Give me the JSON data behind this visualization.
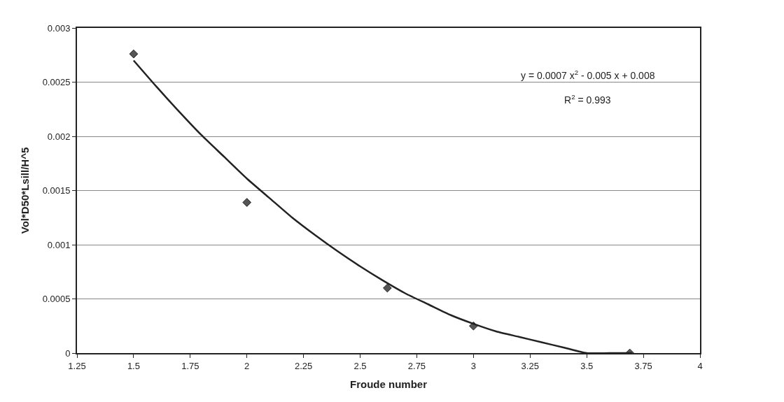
{
  "chart_data": {
    "type": "scatter",
    "xlabel": "Froude number",
    "ylabel": "Vol*D50*Lsill/H^5",
    "series": [
      {
        "marker": "diamond",
        "color": "#555555",
        "x": [
          1.5,
          2,
          2.62,
          3,
          3.69
        ],
        "values": [
          0.00276,
          0.00139,
          0.0006,
          0.00025,
          0
        ]
      },
      {
        "type": "line",
        "marker": "none",
        "color": "#222222",
        "x": [
          1.5,
          1.6,
          1.7,
          1.8,
          1.9,
          2.0,
          2.1,
          2.2,
          2.3,
          2.4,
          2.5,
          2.6,
          2.7,
          2.8,
          2.9,
          3.0,
          3.1,
          3.2,
          3.3,
          3.4,
          3.5,
          3.6,
          3.7
        ],
        "values": [
          0.0027,
          0.00246,
          0.00223,
          0.00201,
          0.00181,
          0.00161,
          0.00143,
          0.00125,
          0.00109,
          0.00094,
          0.0008,
          0.00067,
          0.00055,
          0.00045,
          0.00035,
          0.00027,
          0.0002,
          0.00015,
          0.0001,
          5e-05,
          0,
          0,
          0
        ]
      }
    ],
    "xlim": [
      1.25,
      4
    ],
    "xticks": [
      1.25,
      1.5,
      1.75,
      2,
      2.25,
      2.5,
      2.75,
      3,
      3.25,
      3.5,
      3.75,
      4
    ],
    "ylim": [
      0,
      0.003
    ],
    "yticks": [
      0,
      0.0005,
      0.001,
      0.0015,
      0.002,
      0.0025,
      0.003
    ],
    "grid": "y",
    "annotations": [
      "y = 0.0007 x$^{2}$ - 0.005 x + 0.008",
      "R$^{2}$ = 0.993"
    ]
  }
}
